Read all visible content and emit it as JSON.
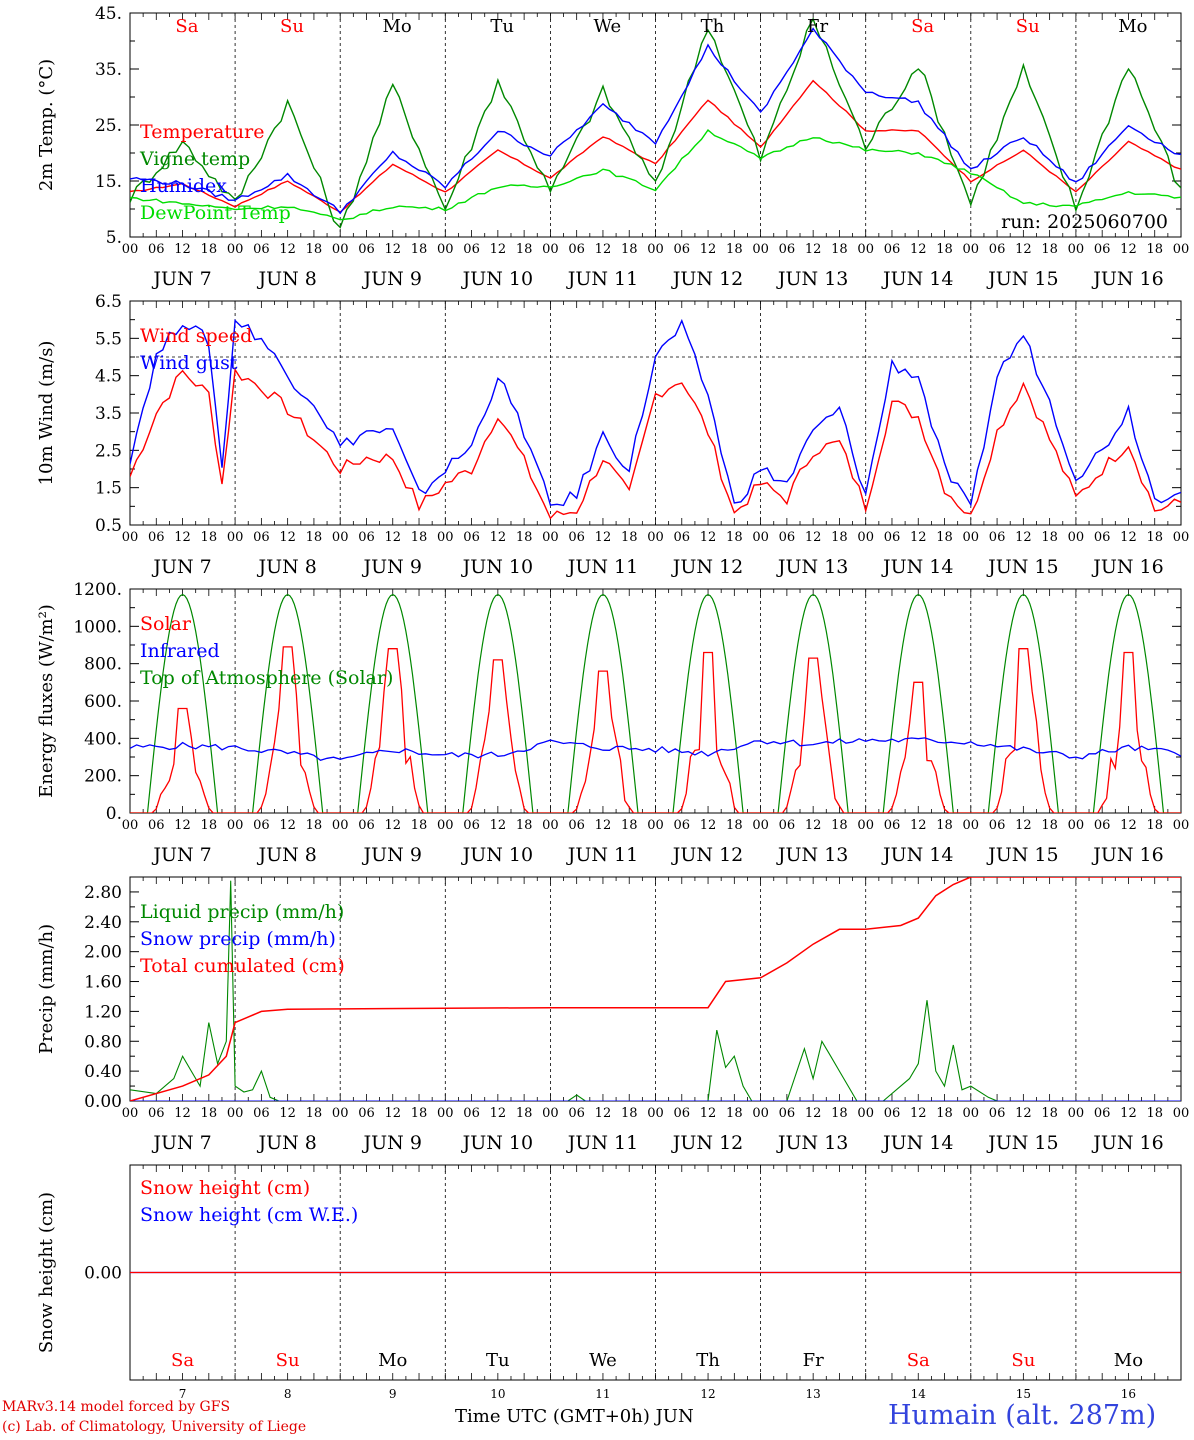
{
  "meteogram": {
    "run_label": "run: 2025060700",
    "days": [
      {
        "abbr": "Sa",
        "weekend": true,
        "date_label": "JUN  7",
        "day_num": "7"
      },
      {
        "abbr": "Su",
        "weekend": true,
        "date_label": "JUN  8",
        "day_num": "8"
      },
      {
        "abbr": "Mo",
        "weekend": false,
        "date_label": "JUN  9",
        "day_num": "9"
      },
      {
        "abbr": "Tu",
        "weekend": false,
        "date_label": "JUN 10",
        "day_num": "10"
      },
      {
        "abbr": "We",
        "weekend": false,
        "date_label": "JUN 11",
        "day_num": "11"
      },
      {
        "abbr": "Th",
        "weekend": false,
        "date_label": "JUN 12",
        "day_num": "12"
      },
      {
        "abbr": "Fr",
        "weekend": false,
        "date_label": "JUN 13",
        "day_num": "13"
      },
      {
        "abbr": "Sa",
        "weekend": true,
        "date_label": "JUN 14",
        "day_num": "14"
      },
      {
        "abbr": "Su",
        "weekend": true,
        "date_label": "JUN 15",
        "day_num": "15"
      },
      {
        "abbr": "Mo",
        "weekend": false,
        "date_label": "JUN 16",
        "day_num": "16"
      }
    ],
    "hour_ticks": [
      "00",
      "06",
      "12",
      "18"
    ],
    "end_tick": "00",
    "x_title": "Time UTC (GMT+0h) JUN",
    "station": "Humain (alt. 287m)",
    "credit_line1": "MARv3.14 model forced by GFS",
    "credit_line2": "(c) Lab. of Climatology, University of Liege",
    "colors": {
      "red": "#ff0000",
      "green": "#008800",
      "blue": "#0000ff",
      "lightgreen": "#00dd00",
      "weekday": "#000000",
      "weekend": "#ff0000"
    }
  },
  "chart_data": [
    {
      "id": "temperature",
      "type": "line",
      "ylabel": "2m Temp. (°C)",
      "ylim": [
        5,
        45
      ],
      "yticks": [
        5,
        15,
        25,
        35,
        45
      ],
      "ytick_labels": [
        "5.",
        "15.",
        "25.",
        "35.",
        "45."
      ],
      "x": [
        0,
        12,
        24,
        36,
        48,
        60,
        72,
        84,
        96,
        108,
        120,
        132,
        144,
        156,
        168,
        180,
        192,
        204,
        216,
        228,
        240
      ],
      "x_unit": "hours since 2025-06-07 00 UTC",
      "series": [
        {
          "name": "Temperature",
          "color": "red",
          "values": [
            13,
            14.5,
            10.5,
            15,
            9.5,
            18,
            13,
            20.5,
            15.5,
            23,
            18,
            29.5,
            21,
            33,
            24,
            24,
            15,
            20.5,
            13,
            22,
            17
          ]
        },
        {
          "name": "Vigne temp",
          "color": "green",
          "values": [
            12,
            22,
            11,
            29,
            6,
            32,
            10,
            33,
            13,
            31,
            14,
            43,
            19,
            44,
            21,
            36,
            11,
            35,
            10,
            36,
            13
          ]
        },
        {
          "name": "Humidex",
          "color": "blue",
          "values": [
            15.5,
            14.5,
            11.5,
            16,
            9.5,
            20,
            14,
            24,
            19.5,
            28.5,
            22,
            39,
            27,
            42,
            31,
            29,
            17,
            23,
            14.5,
            25,
            19.5
          ]
        },
        {
          "name": "DewPoint Temp",
          "color": "lightgreen",
          "values": [
            12,
            11,
            10,
            10.5,
            8,
            10.5,
            10,
            14,
            14,
            17,
            13.5,
            24,
            19,
            23,
            20.5,
            20,
            16.5,
            11,
            10.5,
            13,
            12
          ]
        }
      ]
    },
    {
      "id": "wind",
      "type": "line",
      "ylabel": "10m Wind (m/s)",
      "ylim": [
        0.5,
        6.5
      ],
      "yticks": [
        0.5,
        1.5,
        2.5,
        3.5,
        4.5,
        5.5,
        6.5
      ],
      "ytick_labels": [
        "0.5",
        "1.5",
        "2.5",
        "3.5",
        "4.5",
        "5.5",
        "6.5"
      ],
      "reference_line": 5,
      "x": [
        0,
        6,
        12,
        18,
        21,
        24,
        30,
        36,
        42,
        48,
        54,
        60,
        66,
        72,
        78,
        84,
        90,
        96,
        102,
        108,
        114,
        120,
        126,
        132,
        138,
        144,
        150,
        156,
        162,
        168,
        174,
        180,
        186,
        192,
        198,
        204,
        210,
        216,
        222,
        228,
        234,
        240
      ],
      "x_unit": "hours since 2025-06-07 00 UTC",
      "series": [
        {
          "name": "Wind speed",
          "color": "red",
          "values": [
            1.8,
            3.5,
            4.6,
            4.0,
            1.6,
            4.6,
            4.2,
            3.6,
            2.8,
            2.0,
            2.3,
            2.3,
            1.0,
            1.6,
            2.0,
            3.5,
            2.2,
            0.7,
            0.9,
            2.3,
            1.3,
            4.0,
            4.4,
            3.0,
            0.8,
            1.6,
            1.2,
            2.5,
            2.7,
            1.0,
            3.8,
            3.4,
            1.5,
            0.7,
            3.0,
            4.3,
            2.8,
            1.2,
            2.0,
            2.7,
            0.9,
            1.1
          ]
        },
        {
          "name": "Wind gust",
          "color": "blue",
          "values": [
            2.3,
            5.0,
            6.0,
            5.4,
            2.0,
            6.0,
            5.5,
            4.5,
            3.8,
            2.6,
            3.0,
            3.0,
            1.3,
            2.0,
            2.6,
            4.5,
            3.0,
            1.0,
            1.3,
            2.9,
            2.0,
            5.0,
            5.8,
            4.0,
            1.0,
            2.0,
            1.6,
            3.0,
            3.6,
            1.3,
            4.8,
            4.5,
            2.0,
            0.9,
            4.5,
            5.6,
            3.8,
            1.8,
            2.5,
            3.6,
            1.2,
            1.5
          ]
        }
      ]
    },
    {
      "id": "energy",
      "type": "line",
      "ylabel": "Energy fluxes (W/m²)",
      "ylim": [
        0,
        1200
      ],
      "yticks": [
        0,
        200,
        400,
        600,
        800,
        1000,
        1200
      ],
      "ytick_labels": [
        "0.",
        "200.",
        "400.",
        "600.",
        "800.",
        "1000.",
        "1200."
      ],
      "x_unit": "hours since 2025-06-07 00 UTC",
      "top_of_atmosphere_peak": 1170,
      "top_of_atmosphere_sunrise_hour": 4,
      "top_of_atmosphere_sunset_hour": 20,
      "solar_peaks": [
        {
          "day": 0,
          "value": 560
        },
        {
          "day": 1,
          "value": 890
        },
        {
          "day": 2,
          "value": 880
        },
        {
          "day": 3,
          "value": 820
        },
        {
          "day": 4,
          "value": 760
        },
        {
          "day": 5,
          "value": 860
        },
        {
          "day": 6,
          "value": 830
        },
        {
          "day": 7,
          "value": 700
        },
        {
          "day": 8,
          "value": 880
        },
        {
          "day": 9,
          "value": 860
        }
      ],
      "series": [
        {
          "name": "Solar",
          "color": "red"
        },
        {
          "name": "Infrared",
          "color": "blue",
          "x": [
            0,
            12,
            24,
            36,
            48,
            60,
            72,
            84,
            96,
            108,
            120,
            132,
            144,
            156,
            168,
            180,
            192,
            204,
            216,
            228,
            240
          ],
          "values": [
            350,
            360,
            350,
            320,
            280,
            340,
            310,
            310,
            380,
            350,
            340,
            320,
            390,
            370,
            390,
            390,
            380,
            340,
            300,
            350,
            320
          ]
        },
        {
          "name": "Top of Atmosphere (Solar)",
          "color": "green"
        }
      ]
    },
    {
      "id": "precip",
      "type": "line",
      "ylabel": "Precip (mm/h)",
      "ylim": [
        0,
        3.0
      ],
      "yticks": [
        0,
        0.4,
        0.8,
        1.2,
        1.6,
        2.0,
        2.4,
        2.8
      ],
      "ytick_labels": [
        "0.00",
        "0.40",
        "0.80",
        "1.20",
        "1.60",
        "2.00",
        "2.40",
        "2.80"
      ],
      "x_unit": "hours since 2025-06-07 00 UTC",
      "series": [
        {
          "name": "Liquid precip (mm/h)",
          "color": "green",
          "x": [
            0,
            6,
            10,
            12,
            14,
            16,
            18,
            20,
            22,
            23,
            24,
            26,
            28,
            30,
            32,
            34,
            40,
            100,
            102,
            104,
            132,
            134,
            136,
            138,
            140,
            142,
            150,
            154,
            156,
            158,
            160,
            162,
            164,
            166,
            168,
            172,
            178,
            180,
            182,
            184,
            186,
            188,
            190,
            192,
            196,
            198,
            240
          ],
          "values": [
            0.15,
            0.1,
            0.3,
            0.6,
            0.4,
            0.2,
            1.05,
            0.5,
            0.8,
            2.95,
            0.2,
            0.12,
            0.15,
            0.4,
            0.05,
            0.0,
            0.0,
            0.0,
            0.08,
            0.0,
            0.0,
            0.95,
            0.45,
            0.6,
            0.2,
            0.0,
            0.0,
            0.7,
            0.3,
            0.8,
            0.6,
            0.4,
            0.2,
            0.0,
            0.0,
            0.0,
            0.3,
            0.5,
            1.35,
            0.4,
            0.2,
            0.75,
            0.15,
            0.2,
            0.05,
            0.0,
            0.0
          ]
        },
        {
          "name": "Snow precip (mm/h)",
          "color": "blue",
          "x": [
            0,
            240
          ],
          "values": [
            0,
            0
          ]
        },
        {
          "name": "Total cumulated (cm)",
          "color": "red",
          "x": [
            0,
            12,
            18,
            22,
            24,
            30,
            36,
            96,
            132,
            136,
            144,
            150,
            156,
            162,
            168,
            176,
            180,
            184,
            188,
            192,
            196,
            240
          ],
          "values": [
            0.0,
            0.2,
            0.35,
            0.6,
            1.05,
            1.2,
            1.23,
            1.25,
            1.25,
            1.6,
            1.65,
            1.85,
            2.1,
            2.3,
            2.3,
            2.35,
            2.45,
            2.75,
            2.9,
            3.0,
            3.0,
            3.0
          ]
        }
      ]
    },
    {
      "id": "snow",
      "type": "line",
      "ylabel": "Snow height (cm)",
      "ylim": [
        -1,
        1
      ],
      "yticks": [
        0
      ],
      "ytick_labels": [
        "0.00"
      ],
      "x_unit": "hours since 2025-06-07 00 UTC",
      "series": [
        {
          "name": "Snow height (cm)",
          "color": "red",
          "x": [
            0,
            240
          ],
          "values": [
            0,
            0
          ]
        },
        {
          "name": "Snow height (cm W.E.)",
          "color": "blue",
          "x": [
            0,
            240
          ],
          "values": [
            0,
            0
          ]
        }
      ]
    }
  ]
}
